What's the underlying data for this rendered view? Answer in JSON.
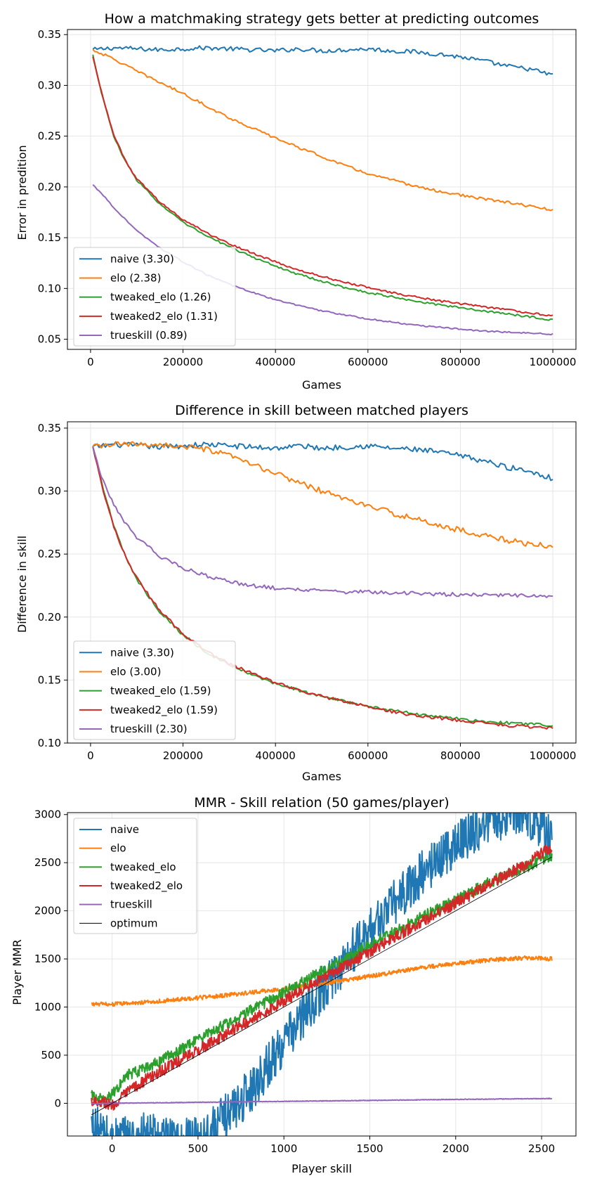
{
  "colors": {
    "naive": "#1f77b4",
    "elo": "#ff7f0e",
    "tweaked_elo": "#2ca02c",
    "tweaked2_elo": "#d62728",
    "trueskill": "#9467bd",
    "optimum": "#000000"
  },
  "chart_data": [
    {
      "type": "line",
      "title": "How a matchmaking strategy gets better at predicting outcomes",
      "xlabel": "Games",
      "ylabel": "Error in predition",
      "xlim": [
        -50000,
        1050000
      ],
      "ylim": [
        0.04,
        0.355
      ],
      "xticks": [
        0,
        200000,
        400000,
        600000,
        800000,
        1000000
      ],
      "xtick_labels": [
        "0",
        "200000",
        "400000",
        "600000",
        "800000",
        "1000000"
      ],
      "yticks": [
        0.05,
        0.1,
        0.15,
        0.2,
        0.25,
        0.3,
        0.35
      ],
      "ytick_labels": [
        "0.05",
        "0.10",
        "0.15",
        "0.20",
        "0.25",
        "0.30",
        "0.35"
      ],
      "grid": true,
      "legend_position": "lower-left",
      "series": [
        {
          "key": "naive",
          "name": "naive (3.30)",
          "x": [
            5000,
            50000,
            100000,
            150000,
            200000,
            250000,
            300000,
            350000,
            400000,
            450000,
            500000,
            550000,
            600000,
            650000,
            700000,
            750000,
            800000,
            850000,
            900000,
            950000,
            1000000
          ],
          "y": [
            0.335,
            0.337,
            0.336,
            0.335,
            0.336,
            0.337,
            0.336,
            0.335,
            0.334,
            0.336,
            0.334,
            0.335,
            0.336,
            0.334,
            0.333,
            0.331,
            0.328,
            0.324,
            0.319,
            0.316,
            0.31
          ]
        },
        {
          "key": "elo",
          "name": "elo (2.38)",
          "x": [
            5000,
            50000,
            100000,
            150000,
            200000,
            250000,
            300000,
            350000,
            400000,
            450000,
            500000,
            550000,
            600000,
            650000,
            700000,
            750000,
            800000,
            850000,
            900000,
            950000,
            1000000
          ],
          "y": [
            0.335,
            0.326,
            0.314,
            0.303,
            0.292,
            0.28,
            0.268,
            0.258,
            0.248,
            0.239,
            0.23,
            0.221,
            0.213,
            0.207,
            0.201,
            0.196,
            0.192,
            0.188,
            0.185,
            0.181,
            0.177
          ]
        },
        {
          "key": "tweaked_elo",
          "name": "tweaked_elo (1.26)",
          "x": [
            5000,
            25000,
            50000,
            75000,
            100000,
            150000,
            200000,
            250000,
            300000,
            350000,
            400000,
            450000,
            500000,
            550000,
            600000,
            650000,
            700000,
            750000,
            800000,
            850000,
            900000,
            950000,
            1000000
          ],
          "y": [
            0.33,
            0.29,
            0.25,
            0.225,
            0.207,
            0.183,
            0.165,
            0.152,
            0.141,
            0.131,
            0.122,
            0.114,
            0.107,
            0.101,
            0.096,
            0.092,
            0.088,
            0.084,
            0.081,
            0.078,
            0.075,
            0.072,
            0.069
          ]
        },
        {
          "key": "tweaked2_elo",
          "name": "tweaked2_elo (1.31)",
          "x": [
            5000,
            25000,
            50000,
            75000,
            100000,
            150000,
            200000,
            250000,
            300000,
            350000,
            400000,
            450000,
            500000,
            550000,
            600000,
            650000,
            700000,
            750000,
            800000,
            850000,
            900000,
            950000,
            1000000
          ],
          "y": [
            0.328,
            0.291,
            0.252,
            0.226,
            0.208,
            0.185,
            0.168,
            0.155,
            0.144,
            0.135,
            0.126,
            0.118,
            0.112,
            0.106,
            0.101,
            0.096,
            0.092,
            0.088,
            0.085,
            0.082,
            0.079,
            0.076,
            0.073
          ]
        },
        {
          "key": "trueskill",
          "name": "trueskill (0.89)",
          "x": [
            5000,
            25000,
            50000,
            75000,
            100000,
            150000,
            200000,
            250000,
            300000,
            350000,
            400000,
            450000,
            500000,
            550000,
            600000,
            650000,
            700000,
            750000,
            800000,
            850000,
            900000,
            950000,
            1000000
          ],
          "y": [
            0.202,
            0.193,
            0.18,
            0.168,
            0.157,
            0.14,
            0.126,
            0.114,
            0.104,
            0.096,
            0.089,
            0.083,
            0.078,
            0.074,
            0.07,
            0.067,
            0.064,
            0.062,
            0.06,
            0.058,
            0.057,
            0.056,
            0.055
          ]
        }
      ]
    },
    {
      "type": "line",
      "title": "Difference in skill between matched players",
      "xlabel": "Games",
      "ylabel": "Difference in skill",
      "xlim": [
        -50000,
        1050000
      ],
      "ylim": [
        0.1,
        0.355
      ],
      "xticks": [
        0,
        200000,
        400000,
        600000,
        800000,
        1000000
      ],
      "xtick_labels": [
        "0",
        "200000",
        "400000",
        "600000",
        "800000",
        "1000000"
      ],
      "yticks": [
        0.1,
        0.15,
        0.2,
        0.25,
        0.3,
        0.35
      ],
      "ytick_labels": [
        "0.10",
        "0.15",
        "0.20",
        "0.25",
        "0.30",
        "0.35"
      ],
      "grid": true,
      "legend_position": "lower-left",
      "series": [
        {
          "key": "naive",
          "name": "naive (3.30)",
          "x": [
            5000,
            50000,
            100000,
            150000,
            200000,
            250000,
            300000,
            350000,
            400000,
            450000,
            500000,
            550000,
            600000,
            650000,
            700000,
            750000,
            800000,
            850000,
            900000,
            950000,
            1000000
          ],
          "y": [
            0.335,
            0.337,
            0.336,
            0.335,
            0.336,
            0.337,
            0.336,
            0.335,
            0.334,
            0.336,
            0.334,
            0.335,
            0.336,
            0.334,
            0.333,
            0.331,
            0.328,
            0.324,
            0.319,
            0.316,
            0.31
          ]
        },
        {
          "key": "elo",
          "name": "elo (3.00)",
          "x": [
            5000,
            50000,
            100000,
            150000,
            200000,
            250000,
            300000,
            350000,
            400000,
            450000,
            500000,
            550000,
            600000,
            650000,
            700000,
            750000,
            800000,
            850000,
            900000,
            950000,
            1000000
          ],
          "y": [
            0.335,
            0.337,
            0.337,
            0.337,
            0.335,
            0.333,
            0.328,
            0.321,
            0.314,
            0.307,
            0.3,
            0.294,
            0.288,
            0.283,
            0.278,
            0.273,
            0.269,
            0.265,
            0.261,
            0.258,
            0.256
          ]
        },
        {
          "key": "tweaked_elo",
          "name": "tweaked_elo (1.59)",
          "x": [
            5000,
            25000,
            50000,
            75000,
            100000,
            150000,
            200000,
            250000,
            300000,
            350000,
            400000,
            450000,
            500000,
            550000,
            600000,
            650000,
            700000,
            750000,
            800000,
            850000,
            900000,
            950000,
            1000000
          ],
          "y": [
            0.335,
            0.305,
            0.273,
            0.248,
            0.23,
            0.204,
            0.186,
            0.172,
            0.162,
            0.154,
            0.147,
            0.142,
            0.137,
            0.133,
            0.129,
            0.126,
            0.123,
            0.121,
            0.119,
            0.117,
            0.116,
            0.115,
            0.114
          ]
        },
        {
          "key": "tweaked2_elo",
          "name": "tweaked2_elo (1.59)",
          "x": [
            5000,
            25000,
            50000,
            75000,
            100000,
            150000,
            200000,
            250000,
            300000,
            350000,
            400000,
            450000,
            500000,
            550000,
            600000,
            650000,
            700000,
            750000,
            800000,
            850000,
            900000,
            950000,
            1000000
          ],
          "y": [
            0.335,
            0.304,
            0.272,
            0.248,
            0.231,
            0.205,
            0.187,
            0.173,
            0.163,
            0.155,
            0.148,
            0.142,
            0.137,
            0.133,
            0.129,
            0.125,
            0.122,
            0.12,
            0.118,
            0.116,
            0.114,
            0.113,
            0.112
          ]
        },
        {
          "key": "trueskill",
          "name": "trueskill (2.30)",
          "x": [
            5000,
            25000,
            50000,
            75000,
            100000,
            150000,
            200000,
            250000,
            300000,
            350000,
            400000,
            450000,
            500000,
            550000,
            600000,
            650000,
            700000,
            750000,
            800000,
            850000,
            900000,
            950000,
            1000000
          ],
          "y": [
            0.335,
            0.31,
            0.29,
            0.275,
            0.263,
            0.248,
            0.239,
            0.233,
            0.228,
            0.225,
            0.223,
            0.222,
            0.221,
            0.22,
            0.22,
            0.219,
            0.219,
            0.218,
            0.218,
            0.218,
            0.217,
            0.217,
            0.217
          ]
        }
      ]
    },
    {
      "type": "line",
      "title": "MMR - Skill relation (50 games/player)",
      "xlabel": "Player skill",
      "ylabel": "Player MMR",
      "xlim": [
        -260,
        2700
      ],
      "ylim": [
        -340,
        3020
      ],
      "xticks": [
        0,
        500,
        1000,
        1500,
        2000,
        2500
      ],
      "xtick_labels": [
        "0",
        "500",
        "1000",
        "1500",
        "2000",
        "2500"
      ],
      "yticks": [
        0,
        500,
        1000,
        1500,
        2000,
        2500,
        3000
      ],
      "ytick_labels": [
        "0",
        "500",
        "1000",
        "1500",
        "2000",
        "2500",
        "3000"
      ],
      "grid": true,
      "legend_position": "upper-left",
      "series": [
        {
          "key": "naive",
          "name": "naive",
          "x": [
            -120,
            0,
            200,
            400,
            600,
            800,
            1000,
            1200,
            1400,
            1600,
            1800,
            2000,
            2200,
            2400,
            2560
          ],
          "y": [
            -230,
            -380,
            -330,
            -420,
            -250,
            120,
            630,
            1130,
            1580,
            2000,
            2380,
            2700,
            2940,
            3050,
            2720
          ]
        },
        {
          "key": "elo",
          "name": "elo",
          "x": [
            -120,
            0,
            200,
            400,
            600,
            800,
            1000,
            1200,
            1400,
            1600,
            1800,
            2000,
            2200,
            2400,
            2560
          ],
          "y": [
            1030,
            1030,
            1050,
            1080,
            1110,
            1150,
            1190,
            1240,
            1290,
            1350,
            1410,
            1450,
            1490,
            1510,
            1500
          ]
        },
        {
          "key": "tweaked_elo",
          "name": "tweaked_elo",
          "x": [
            -120,
            -50,
            0,
            100,
            200,
            400,
            600,
            800,
            1000,
            1200,
            1400,
            1600,
            1800,
            2000,
            2200,
            2400,
            2560
          ],
          "y": [
            80,
            50,
            100,
            300,
            360,
            560,
            760,
            960,
            1150,
            1350,
            1540,
            1740,
            1930,
            2110,
            2300,
            2450,
            2580
          ]
        },
        {
          "key": "tweaked2_elo",
          "name": "tweaked2_elo",
          "x": [
            -120,
            -50,
            0,
            100,
            200,
            400,
            600,
            800,
            1000,
            1200,
            1400,
            1600,
            1800,
            2000,
            2200,
            2400,
            2560
          ],
          "y": [
            30,
            20,
            -30,
            130,
            250,
            450,
            650,
            860,
            1060,
            1270,
            1470,
            1680,
            1880,
            2080,
            2280,
            2480,
            2670
          ]
        },
        {
          "key": "trueskill",
          "name": "trueskill",
          "x": [
            -120,
            0,
            500,
            1000,
            1500,
            2000,
            2560
          ],
          "y": [
            -5,
            0,
            10,
            20,
            30,
            40,
            50
          ]
        },
        {
          "key": "optimum",
          "name": "optimum",
          "x": [
            -120,
            2560
          ],
          "y": [
            -120,
            2560
          ]
        }
      ]
    }
  ]
}
